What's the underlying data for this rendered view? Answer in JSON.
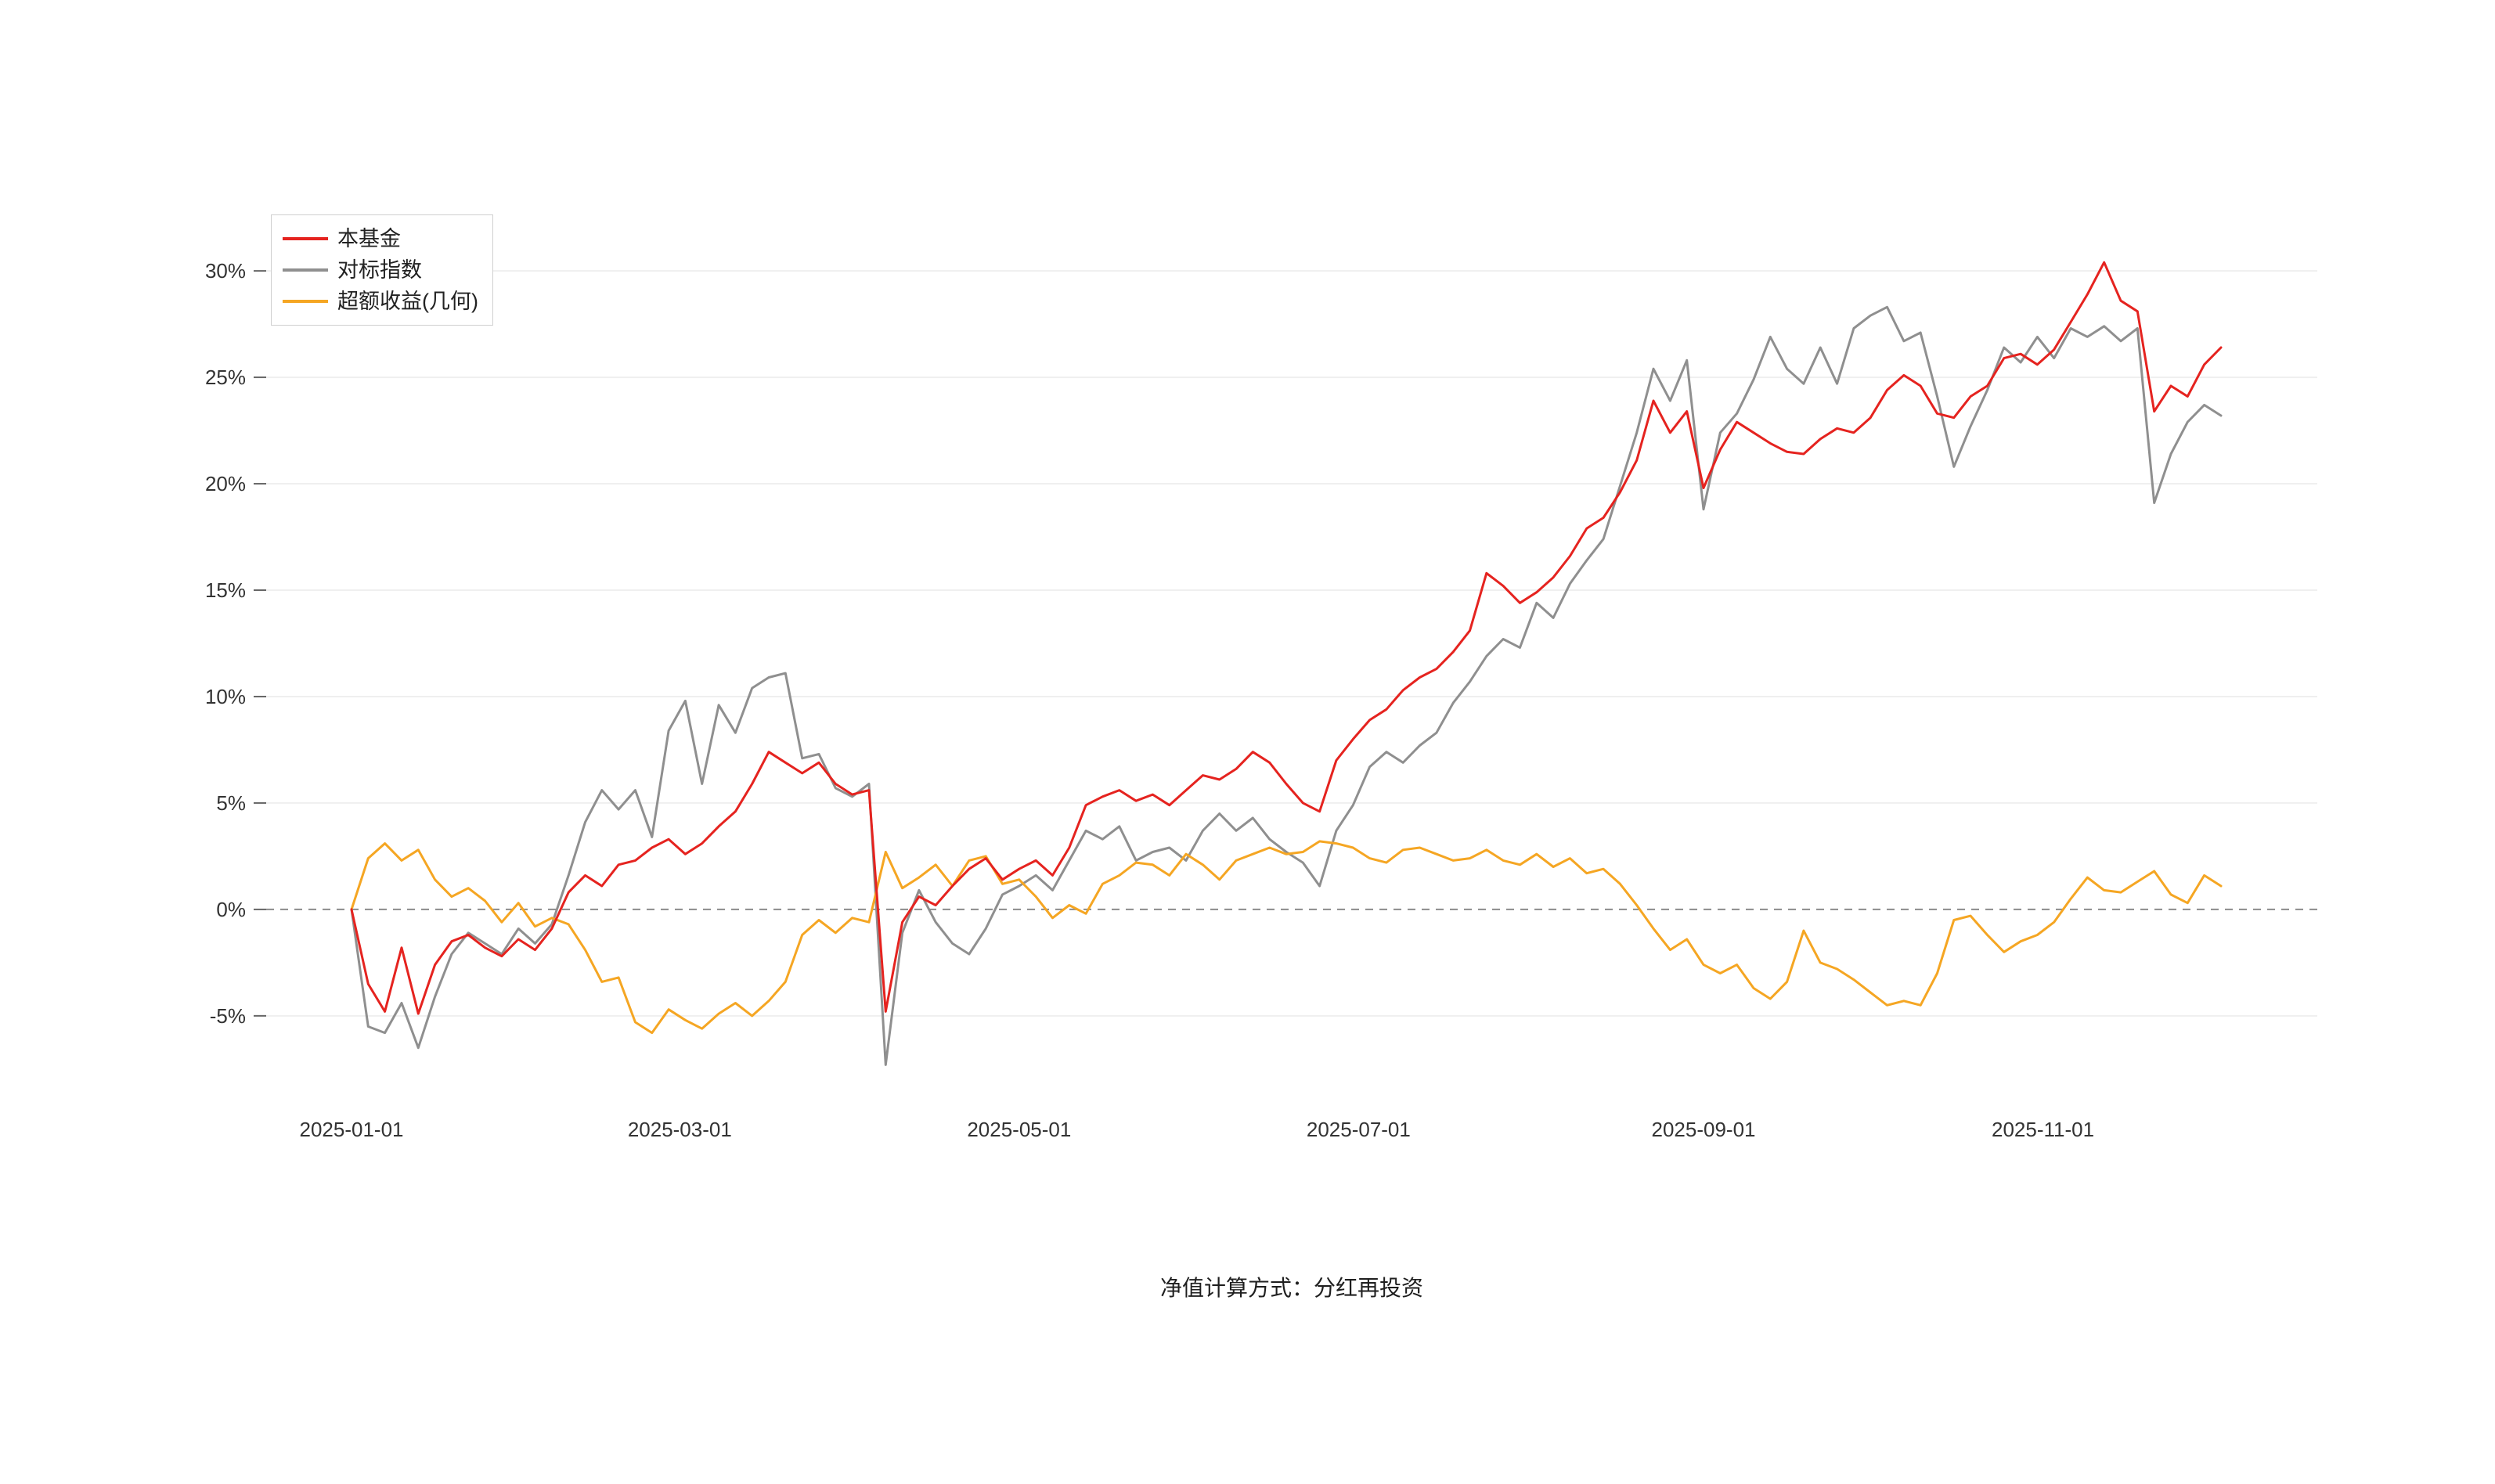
{
  "page": {
    "caption": "净值计算方式：分红再投资"
  },
  "chart_data": {
    "type": "line",
    "title": "",
    "xlabel": "",
    "ylabel": "",
    "x_start_date": "2025-01-01",
    "x_unit": "days_since_2025-01-01",
    "grid": "horizontal",
    "zero_line": "dashed",
    "legend_position": "top-left",
    "ylim": [
      -8.5,
      32.5
    ],
    "xlim_days": [
      0,
      340
    ],
    "y_ticks": [
      -5,
      0,
      5,
      10,
      15,
      20,
      25,
      30
    ],
    "y_tick_labels": [
      "-5%",
      "0%",
      "5%",
      "10%",
      "15%",
      "20%",
      "25%",
      "30%"
    ],
    "x_ticks": [
      {
        "day": 0,
        "label": "2025-01-01"
      },
      {
        "day": 59,
        "label": "2025-03-01"
      },
      {
        "day": 120,
        "label": "2025-05-01"
      },
      {
        "day": 181,
        "label": "2025-07-01"
      },
      {
        "day": 243,
        "label": "2025-09-01"
      },
      {
        "day": 304,
        "label": "2025-11-01"
      }
    ],
    "x_days": [
      0,
      3,
      6,
      9,
      12,
      15,
      18,
      21,
      24,
      27,
      30,
      33,
      36,
      39,
      42,
      45,
      48,
      51,
      54,
      57,
      60,
      63,
      66,
      69,
      72,
      75,
      78,
      81,
      84,
      87,
      90,
      93,
      96,
      99,
      102,
      105,
      108,
      111,
      114,
      117,
      120,
      123,
      126,
      129,
      132,
      135,
      138,
      141,
      144,
      147,
      150,
      153,
      156,
      159,
      162,
      165,
      168,
      171,
      174,
      177,
      180,
      183,
      186,
      189,
      192,
      195,
      198,
      201,
      204,
      207,
      210,
      213,
      216,
      219,
      222,
      225,
      228,
      231,
      234,
      237,
      240,
      243,
      246,
      249,
      252,
      255,
      258,
      261,
      264,
      267,
      270,
      273,
      276,
      279,
      282,
      285,
      288,
      291,
      294,
      297,
      300,
      303,
      306,
      309,
      312,
      315,
      318,
      321,
      324,
      327,
      330,
      333,
      336
    ],
    "series": [
      {
        "key": "fund",
        "name": "本基金",
        "color": "#e5231f",
        "values": [
          0,
          -3.5,
          -4.8,
          -1.8,
          -4.9,
          -2.6,
          -1.5,
          -1.2,
          -1.8,
          -2.2,
          -1.4,
          -1.9,
          -0.9,
          0.8,
          1.6,
          1.1,
          2.1,
          2.3,
          2.9,
          3.3,
          2.6,
          3.1,
          3.9,
          4.6,
          5.9,
          7.4,
          6.9,
          6.4,
          6.9,
          5.9,
          5.4,
          5.6,
          -4.8,
          -0.6,
          0.6,
          0.2,
          1.1,
          1.9,
          2.4,
          1.4,
          1.9,
          2.3,
          1.6,
          2.9,
          4.9,
          5.3,
          5.6,
          5.1,
          5.4,
          4.9,
          5.6,
          6.3,
          6.1,
          6.6,
          7.4,
          6.9,
          5.9,
          5.0,
          4.6,
          7.0,
          8.0,
          8.9,
          9.4,
          10.3,
          10.9,
          11.3,
          12.1,
          13.1,
          15.8,
          15.2,
          14.4,
          14.9,
          15.6,
          16.6,
          17.9,
          18.4,
          19.6,
          21.1,
          23.9,
          22.4,
          23.4,
          19.8,
          21.6,
          22.9,
          22.4,
          21.9,
          21.5,
          21.4,
          22.1,
          22.6,
          22.4,
          23.1,
          24.4,
          25.1,
          24.6,
          23.3,
          23.1,
          24.1,
          24.6,
          25.9,
          26.1,
          25.6,
          26.3,
          27.6,
          28.9,
          30.4,
          28.6,
          28.1,
          23.4,
          24.6,
          24.1,
          25.6,
          26.4
        ]
      },
      {
        "key": "benchmark",
        "name": "对标指数",
        "color": "#8f8f8f",
        "values": [
          0,
          -5.5,
          -5.8,
          -4.4,
          -6.5,
          -4.1,
          -2.1,
          -1.1,
          -1.6,
          -2.1,
          -0.9,
          -1.6,
          -0.7,
          1.6,
          4.1,
          5.6,
          4.7,
          5.6,
          3.4,
          8.4,
          9.8,
          5.9,
          9.6,
          8.3,
          10.4,
          10.9,
          11.1,
          7.1,
          7.3,
          5.7,
          5.3,
          5.9,
          -7.3,
          -1.1,
          0.9,
          -0.6,
          -1.6,
          -2.1,
          -0.9,
          0.7,
          1.1,
          1.6,
          0.9,
          2.3,
          3.7,
          3.3,
          3.9,
          2.3,
          2.7,
          2.9,
          2.3,
          3.7,
          4.5,
          3.7,
          4.3,
          3.3,
          2.7,
          2.2,
          1.1,
          3.7,
          4.9,
          6.7,
          7.4,
          6.9,
          7.7,
          8.3,
          9.7,
          10.7,
          11.9,
          12.7,
          12.3,
          14.4,
          13.7,
          15.3,
          16.4,
          17.4,
          19.9,
          22.4,
          25.4,
          23.9,
          25.8,
          18.8,
          22.4,
          23.3,
          24.9,
          26.9,
          25.4,
          24.7,
          26.4,
          24.7,
          27.3,
          27.9,
          28.3,
          26.7,
          27.1,
          24.1,
          20.8,
          22.7,
          24.4,
          26.4,
          25.7,
          26.9,
          25.9,
          27.3,
          26.9,
          27.4,
          26.7,
          27.3,
          19.1,
          21.4,
          22.9,
          23.7,
          23.2
        ]
      },
      {
        "key": "excess_geometric",
        "name": "超额收益(几何)",
        "color": "#f5a623",
        "values": [
          0,
          2.4,
          3.1,
          2.3,
          2.8,
          1.4,
          0.6,
          1.0,
          0.4,
          -0.6,
          0.3,
          -0.8,
          -0.4,
          -0.7,
          -1.9,
          -3.4,
          -3.2,
          -5.3,
          -5.8,
          -4.7,
          -5.2,
          -5.6,
          -4.9,
          -4.4,
          -5.0,
          -4.3,
          -3.4,
          -1.2,
          -0.5,
          -1.1,
          -0.4,
          -0.6,
          2.7,
          1.0,
          1.5,
          2.1,
          1.1,
          2.3,
          2.5,
          1.2,
          1.4,
          0.6,
          -0.4,
          0.2,
          -0.2,
          1.2,
          1.6,
          2.2,
          2.1,
          1.6,
          2.6,
          2.1,
          1.4,
          2.3,
          2.6,
          2.9,
          2.6,
          2.7,
          3.2,
          3.1,
          2.9,
          2.4,
          2.2,
          2.8,
          2.9,
          2.6,
          2.3,
          2.4,
          2.8,
          2.3,
          2.1,
          2.6,
          2.0,
          2.4,
          1.7,
          1.9,
          1.2,
          0.2,
          -0.9,
          -1.9,
          -1.4,
          -2.6,
          -3.0,
          -2.6,
          -3.7,
          -4.2,
          -3.4,
          -1.0,
          -2.5,
          -2.8,
          -3.3,
          -3.9,
          -4.5,
          -4.3,
          -4.5,
          -3.0,
          -0.5,
          -0.3,
          -1.2,
          -2.0,
          -1.5,
          -1.2,
          -0.6,
          0.5,
          1.5,
          0.9,
          0.8,
          1.3,
          1.8,
          0.7,
          0.3,
          1.6,
          1.1
        ]
      }
    ],
    "caption": "净值计算方式：分红再投资",
    "colors": {
      "grid_line": "#efefef",
      "zero_line": "#8c8c8c",
      "tick_text": "#333333"
    }
  }
}
